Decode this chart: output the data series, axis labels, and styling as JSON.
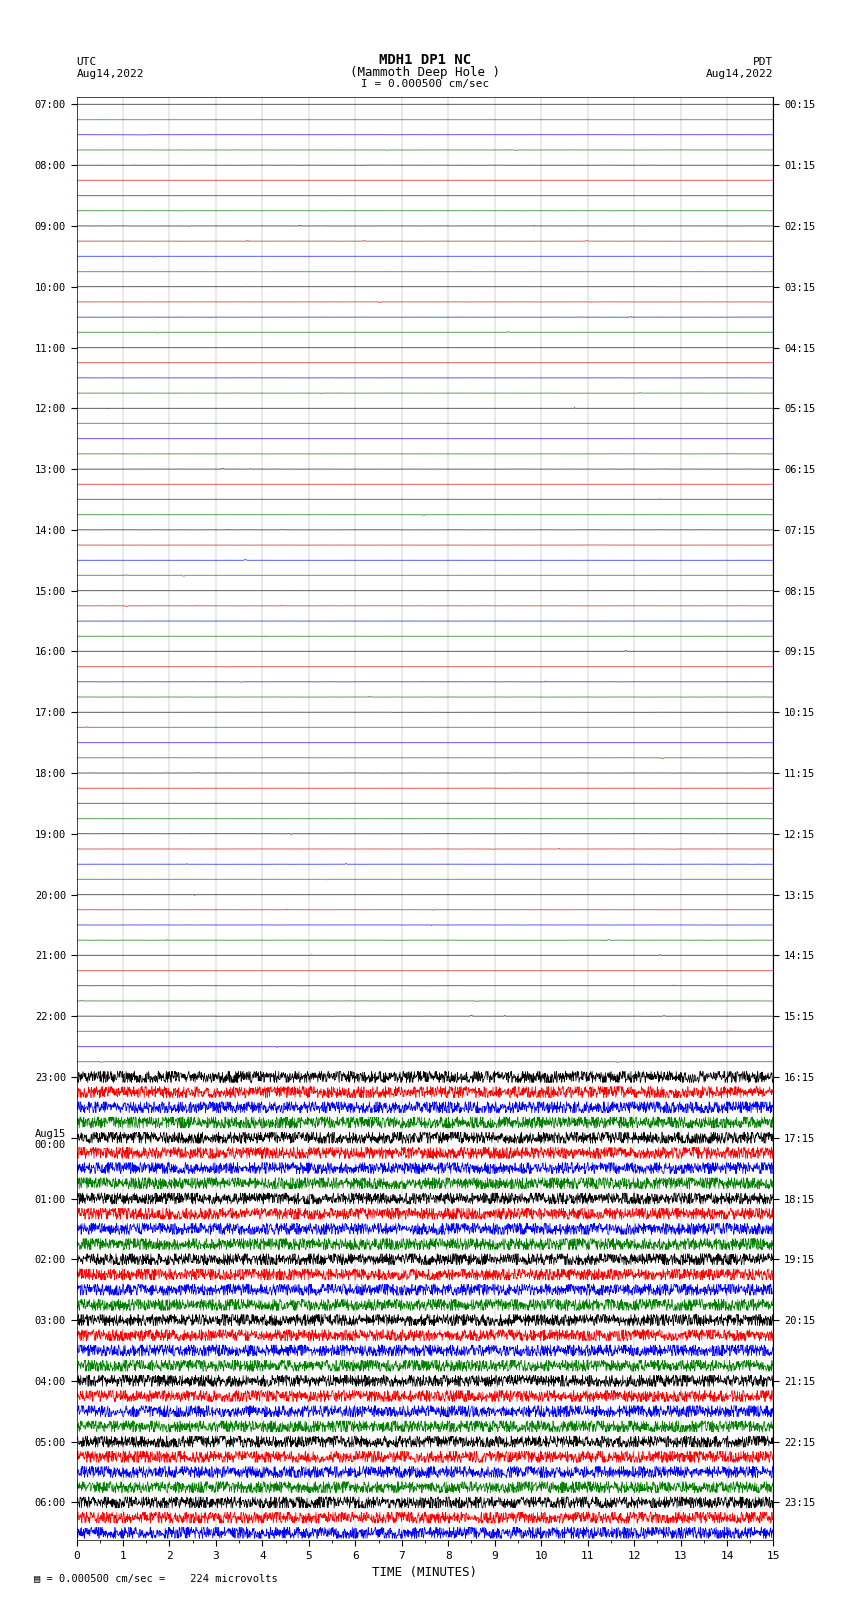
{
  "title_line1": "MDH1 DP1 NC",
  "title_line2": "(Mammoth Deep Hole )",
  "scale_label": "I = 0.000500 cm/sec",
  "left_label_line1": "UTC",
  "left_label_line2": "Aug14,2022",
  "right_label_line1": "PDT",
  "right_label_line2": "Aug14,2022",
  "bottom_label": "TIME (MINUTES)",
  "footer_label": "= 0.000500 cm/sec =    224 microvolts",
  "xlabel_ticks": [
    0,
    1,
    2,
    3,
    4,
    5,
    6,
    7,
    8,
    9,
    10,
    11,
    12,
    13,
    14,
    15
  ],
  "utc_times_left": [
    "07:00",
    "",
    "",
    "",
    "08:00",
    "",
    "",
    "",
    "09:00",
    "",
    "",
    "",
    "10:00",
    "",
    "",
    "",
    "11:00",
    "",
    "",
    "",
    "12:00",
    "",
    "",
    "",
    "13:00",
    "",
    "",
    "",
    "14:00",
    "",
    "",
    "",
    "15:00",
    "",
    "",
    "",
    "16:00",
    "",
    "",
    "",
    "17:00",
    "",
    "",
    "",
    "18:00",
    "",
    "",
    "",
    "19:00",
    "",
    "",
    "",
    "20:00",
    "",
    "",
    "",
    "21:00",
    "",
    "",
    "",
    "22:00",
    "",
    "",
    "",
    "23:00",
    "",
    "",
    "",
    "Aug15\n00:00",
    "",
    "",
    "",
    "01:00",
    "",
    "",
    "",
    "02:00",
    "",
    "",
    "",
    "03:00",
    "",
    "",
    "",
    "04:00",
    "",
    "",
    "",
    "05:00",
    "",
    "",
    "",
    "06:00",
    "",
    ""
  ],
  "pdt_times_right": [
    "00:15",
    "",
    "",
    "",
    "01:15",
    "",
    "",
    "",
    "02:15",
    "",
    "",
    "",
    "03:15",
    "",
    "",
    "",
    "04:15",
    "",
    "",
    "",
    "05:15",
    "",
    "",
    "",
    "06:15",
    "",
    "",
    "",
    "07:15",
    "",
    "",
    "",
    "08:15",
    "",
    "",
    "",
    "09:15",
    "",
    "",
    "",
    "10:15",
    "",
    "",
    "",
    "11:15",
    "",
    "",
    "",
    "12:15",
    "",
    "",
    "",
    "13:15",
    "",
    "",
    "",
    "14:15",
    "",
    "",
    "",
    "15:15",
    "",
    "",
    "",
    "16:15",
    "",
    "",
    "",
    "17:15",
    "",
    "",
    "",
    "18:15",
    "",
    "",
    "",
    "19:15",
    "",
    "",
    "",
    "20:15",
    "",
    "",
    "",
    "21:15",
    "",
    "",
    "",
    "22:15",
    "",
    "",
    "",
    "23:15",
    "",
    ""
  ],
  "n_traces": 95,
  "quiet_traces": 64,
  "colors_cycle": [
    "black",
    "red",
    "blue",
    "green"
  ],
  "bg_color": "white",
  "trace_amplitude_quiet": 0.008,
  "trace_amplitude_noisy": 0.38,
  "grid_color": "#999999",
  "figsize": [
    8.5,
    16.13
  ],
  "dpi": 100
}
